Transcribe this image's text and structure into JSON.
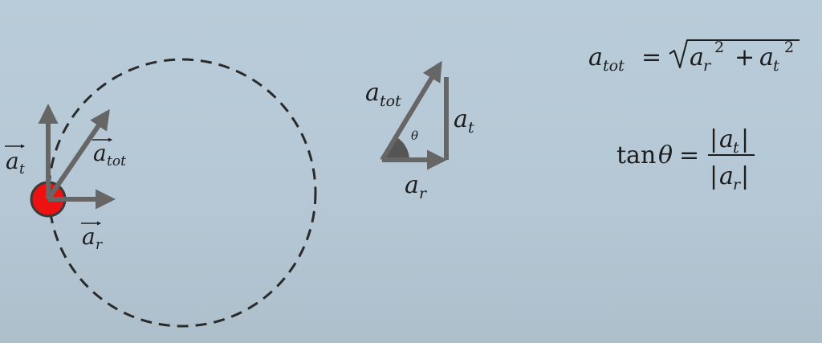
{
  "diagram": {
    "labels": {
      "vec_at_base": "a",
      "vec_at_sub": "t",
      "vec_atot_base": "a",
      "vec_atot_sub": "tot",
      "vec_ar_base": "a",
      "vec_ar_sub": "r",
      "tri_atot_base": "a",
      "tri_atot_sub": "tot",
      "tri_at_base": "a",
      "tri_at_sub": "t",
      "tri_ar_base": "a",
      "tri_ar_sub": "r",
      "theta": "θ"
    },
    "equations": {
      "magnitude": {
        "lhs_base": "a",
        "lhs_sub": "tot",
        "equals": "=",
        "term1_base": "a",
        "term1_sub": "r",
        "exp": "2",
        "plus": "+",
        "term2_base": "a",
        "term2_sub": "t"
      },
      "angle": {
        "func": "tan",
        "theta": "θ",
        "equals": "=",
        "num_base": "a",
        "num_sub": "t",
        "den_base": "a",
        "den_sub": "r",
        "bar": "|"
      }
    },
    "colors": {
      "arrow": "#666666",
      "circle_dash": "#2a2a2a",
      "ball_fill": "#ee1111",
      "ball_stroke": "#3a3a3a",
      "angle_wedge": "#555555",
      "text": "#1c1c1c"
    }
  }
}
